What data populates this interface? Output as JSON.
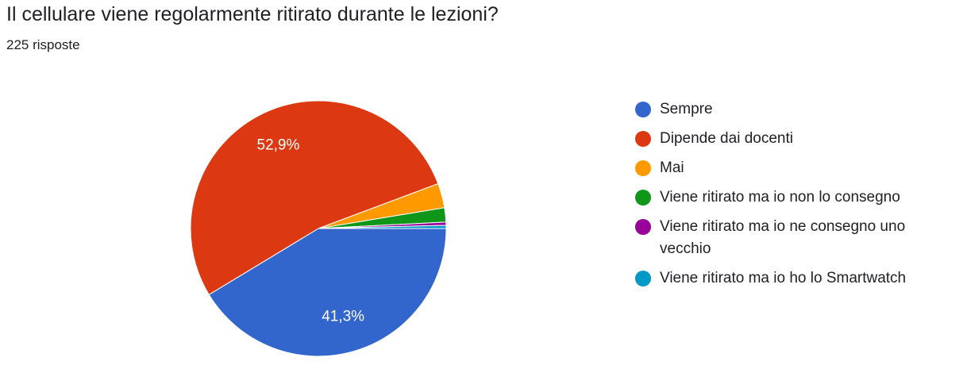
{
  "chart_data": {
    "type": "pie",
    "title": "Il cellulare viene regolarmente ritirato durante le lezioni?",
    "subtitle": "225 risposte",
    "categories": [
      "Sempre",
      "Dipende dai docenti",
      "Mai",
      "Viene ritirato ma io non lo consegno",
      "Viene ritirato ma io ne consegno uno vecchio",
      "Viene ritirato ma io ho lo Smartwatch"
    ],
    "values": [
      41.3,
      52.9,
      3.1,
      1.8,
      0.4,
      0.4
    ],
    "value_labels": [
      "41,3%",
      "52,9%",
      null,
      null,
      null,
      null
    ],
    "colors": [
      "#3366cc",
      "#dc3912",
      "#ff9900",
      "#109618",
      "#990099",
      "#0099c6"
    ],
    "legend": "right"
  }
}
